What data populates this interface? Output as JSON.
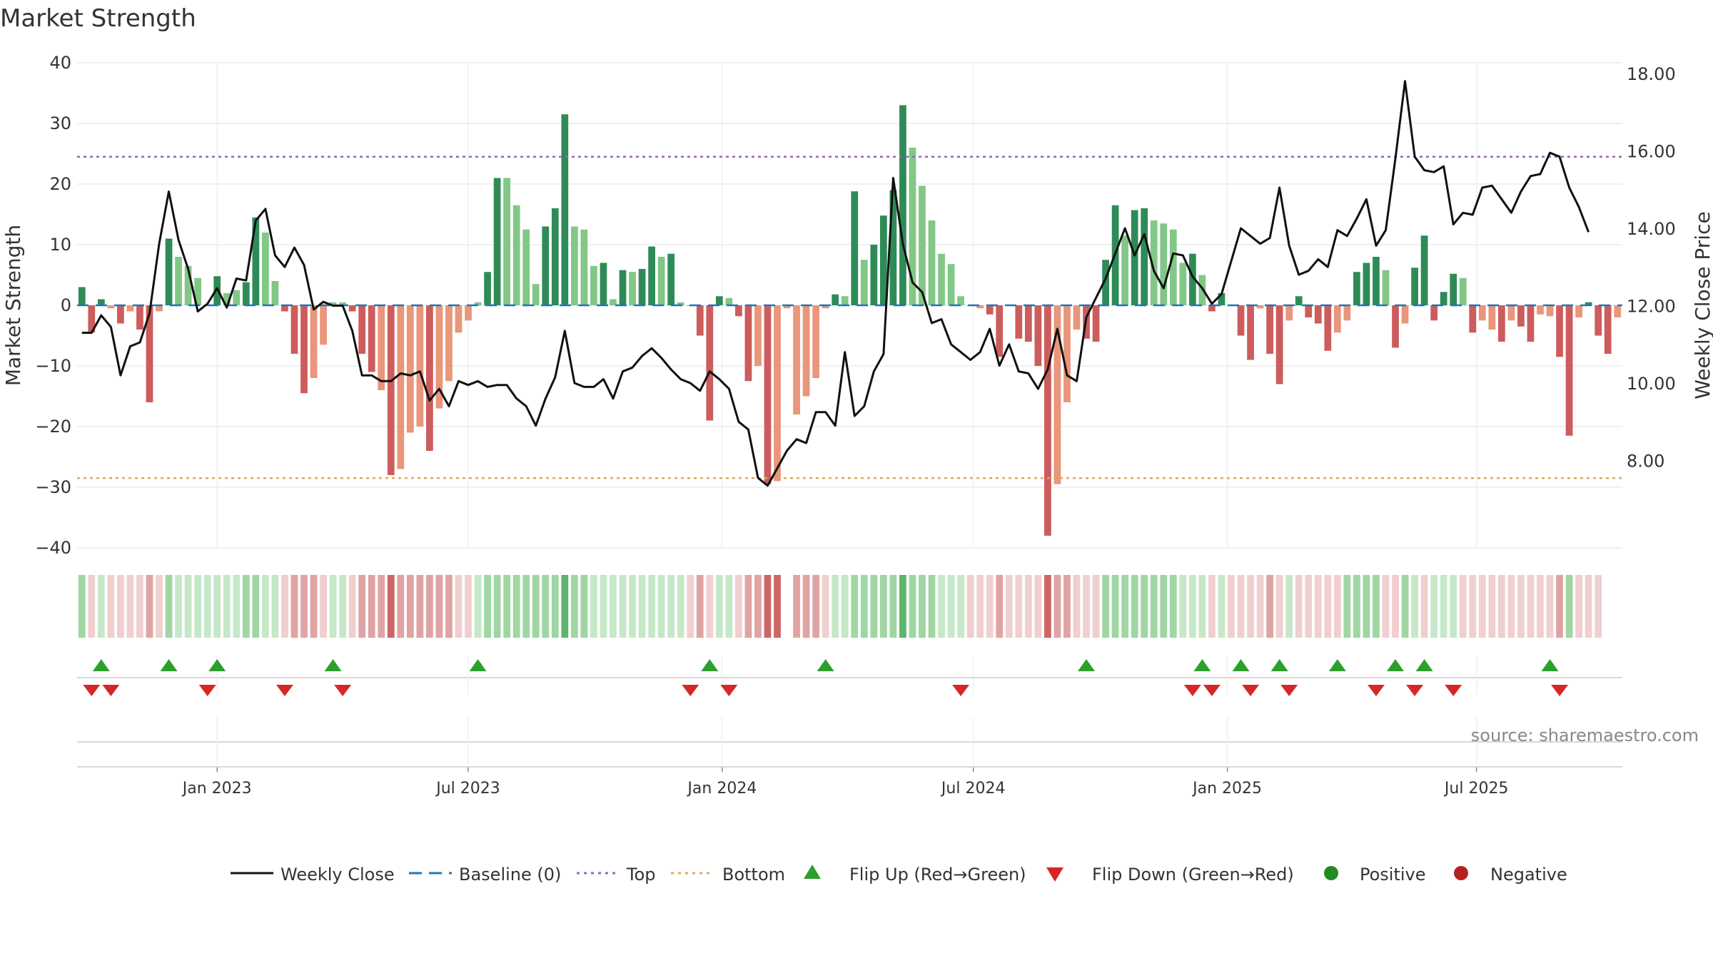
{
  "chart_data": {
    "type": "bar",
    "title": "Market Strength",
    "ylabel": "Market Strength",
    "ylabel_right": "Weekly Close Price",
    "ylim": [
      -40,
      40
    ],
    "ylim_right": [
      6.0,
      18.0
    ],
    "yticks": [
      40,
      30,
      20,
      10,
      0,
      -10,
      -20,
      -30,
      -40
    ],
    "yticks_right": [
      18.0,
      16.0,
      14.0,
      12.0,
      10.0,
      8.0
    ],
    "ytick_labels": [
      "40",
      "30",
      "20",
      "10",
      "0",
      "−10",
      "−20",
      "−30",
      "−40"
    ],
    "ytick_right_labels": [
      "18.00",
      "16.00",
      "14.00",
      "12.00",
      "10.00",
      "8.00"
    ],
    "xtick_labels": [
      "Jan 2023",
      "Jul 2023",
      "Jan 2024",
      "Jul 2024",
      "Jan 2025",
      "Jul 2025"
    ],
    "xtick_weeks": [
      14,
      40,
      66.3,
      92.3,
      118.6,
      144.4
    ],
    "top_line": 24.5,
    "bottom_line": -28.5,
    "strength": [
      3,
      -4.5,
      1,
      -0.5,
      -3,
      -1,
      -4,
      -16,
      -1,
      11,
      8,
      6.5,
      4.5,
      0,
      4.8,
      2,
      2.5,
      3.8,
      14.5,
      12,
      4,
      -1,
      -8,
      -14.5,
      -12,
      -6.5,
      0.5,
      0.5,
      -1,
      -8,
      -11,
      -14,
      -28,
      -27,
      -21,
      -20,
      -24,
      -17,
      -12.5,
      -4.5,
      -2.5,
      0.5,
      5.5,
      21,
      21,
      16.5,
      12.5,
      3.5,
      13,
      16,
      31.5,
      13,
      12.5,
      6.5,
      7,
      1,
      5.8,
      5.5,
      6,
      9.7,
      8,
      8.5,
      0.5,
      0,
      -5,
      -19,
      1.5,
      1.2,
      -1.8,
      -12.5,
      -10,
      -29.5,
      -29,
      -0.5,
      -18,
      -15,
      -12,
      -0.5,
      1.8,
      1.5,
      18.8,
      7.5,
      10,
      14.8,
      19,
      33,
      26,
      19.7,
      14,
      8.5,
      6.8,
      1.5,
      0,
      -0.5,
      -1.5,
      -8.5,
      0,
      -5.5,
      -6,
      -10,
      -38,
      -29.5,
      -16,
      -4,
      -5.5,
      -6,
      7.5,
      16.5,
      11.5,
      15.7,
      16,
      14,
      13.5,
      12.5,
      7,
      8.5,
      5,
      -1,
      2,
      0,
      -5,
      -9,
      -0.5,
      -8,
      -13,
      -2.5,
      1.5,
      -2,
      -3,
      -7.5,
      -4.5,
      -2.5,
      5.5,
      7,
      8,
      5.8,
      -7,
      -3,
      6.2,
      11.5,
      -2.5,
      2.2,
      5.2,
      4.5,
      -4.5,
      -2.5,
      -4,
      -6,
      -2.5,
      -3.5,
      -6,
      -1.5,
      -1.8,
      -8.5,
      -21.5,
      -2,
      0.5,
      -5,
      -8,
      -2
    ],
    "bar_tones": [
      "dg",
      "dr",
      "dg",
      "lr",
      "dr",
      "lr",
      "dr",
      "dr",
      "lr",
      "dg",
      "lg",
      "lg",
      "lg",
      "lg",
      "dg",
      "lg",
      "lg",
      "dg",
      "dg",
      "lg",
      "lg",
      "dr",
      "dr",
      "dr",
      "lr",
      "lr",
      "lg",
      "lg",
      "dr",
      "dr",
      "dr",
      "lr",
      "dr",
      "lr",
      "lr",
      "lr",
      "dr",
      "lr",
      "lr",
      "lr",
      "lr",
      "lg",
      "dg",
      "dg",
      "lg",
      "lg",
      "lg",
      "lg",
      "dg",
      "dg",
      "dg",
      "lg",
      "lg",
      "lg",
      "dg",
      "lg",
      "dg",
      "lg",
      "dg",
      "dg",
      "lg",
      "dg",
      "lg",
      "lr",
      "dr",
      "dr",
      "dg",
      "lg",
      "dr",
      "dr",
      "lr",
      "dr",
      "lr",
      "lr",
      "lr",
      "lr",
      "lr",
      "lr",
      "dg",
      "lg",
      "dg",
      "lg",
      "dg",
      "dg",
      "dg",
      "dg",
      "lg",
      "lg",
      "lg",
      "lg",
      "lg",
      "lg",
      "lr",
      "lr",
      "dr",
      "dr",
      "lr",
      "dr",
      "dr",
      "dr",
      "dr",
      "lr",
      "lr",
      "lr",
      "dr",
      "dr",
      "dg",
      "dg",
      "lg",
      "dg",
      "dg",
      "lg",
      "lg",
      "lg",
      "lg",
      "dg",
      "lg",
      "dr",
      "dg",
      "lr",
      "dr",
      "dr",
      "lr",
      "dr",
      "dr",
      "lr",
      "dg",
      "dr",
      "dr",
      "dr",
      "lr",
      "lr",
      "dg",
      "dg",
      "dg",
      "lg",
      "dr",
      "lr",
      "dg",
      "dg",
      "dr",
      "dg",
      "dg",
      "lg",
      "dr",
      "lr",
      "lr",
      "dr",
      "lr",
      "dr",
      "dr",
      "lr",
      "lr",
      "dr",
      "dr",
      "lr",
      "dg",
      "dr",
      "dr",
      "lr"
    ],
    "price": [
      11.3,
      11.3,
      11.75,
      11.45,
      10.2,
      10.95,
      11.05,
      11.8,
      13.6,
      14.95,
      13.7,
      12.95,
      11.85,
      12.05,
      12.45,
      11.95,
      12.7,
      12.65,
      14.2,
      14.5,
      13.3,
      13.0,
      13.5,
      13.05,
      11.9,
      12.1,
      12.0,
      12.0,
      11.35,
      10.2,
      10.2,
      10.05,
      10.05,
      10.25,
      10.2,
      10.3,
      9.55,
      9.85,
      9.4,
      10.05,
      9.95,
      10.05,
      9.9,
      9.95,
      9.95,
      9.6,
      9.4,
      8.9,
      9.6,
      10.15,
      11.35,
      10.0,
      9.9,
      9.9,
      10.1,
      9.6,
      10.3,
      10.4,
      10.7,
      10.9,
      10.65,
      10.35,
      10.1,
      10.0,
      9.8,
      10.3,
      10.1,
      9.85,
      9.0,
      8.8,
      7.55,
      7.35,
      7.8,
      8.25,
      8.55,
      8.45,
      9.25,
      9.25,
      8.9,
      10.8,
      9.15,
      9.4,
      10.3,
      10.75,
      15.3,
      13.6,
      12.6,
      12.35,
      11.55,
      11.65,
      11.0,
      10.8,
      10.6,
      10.8,
      11.4,
      10.45,
      11.0,
      10.3,
      10.25,
      9.85,
      10.35,
      11.4,
      10.2,
      10.05,
      11.7,
      12.2,
      12.7,
      13.35,
      14.0,
      13.3,
      13.85,
      12.9,
      12.45,
      13.35,
      13.3,
      12.75,
      12.45,
      12.05,
      12.3,
      13.15,
      14.0,
      13.8,
      13.6,
      13.75,
      15.05,
      13.55,
      12.8,
      12.9,
      13.2,
      13.0,
      13.95,
      13.8,
      14.25,
      14.75,
      13.55,
      13.95,
      15.8,
      17.8,
      15.85,
      15.5,
      15.45,
      15.6,
      14.1,
      14.4,
      14.35,
      15.05,
      15.1,
      14.75,
      14.4,
      14.95,
      15.35,
      15.4,
      15.95,
      15.85,
      15.05,
      14.55,
      13.9
    ],
    "shading_tones": [
      "mg",
      "lr",
      "lg",
      "lr",
      "lr",
      "lr",
      "lr",
      "mr",
      "lr",
      "mg",
      "lg",
      "lg",
      "lg",
      "lg",
      "lg",
      "lg",
      "lg",
      "mg",
      "mg",
      "lg",
      "lg",
      "lr",
      "mr",
      "mr",
      "mr",
      "lr",
      "lg",
      "lg",
      "lr",
      "mr",
      "mr",
      "mr",
      "dr",
      "mr",
      "mr",
      "mr",
      "mr",
      "mr",
      "mr",
      "lr",
      "lr",
      "lg",
      "mg",
      "mg",
      "mg",
      "mg",
      "mg",
      "mg",
      "mg",
      "mg",
      "dg",
      "mg",
      "mg",
      "lg",
      "lg",
      "lg",
      "lg",
      "lg",
      "lg",
      "lg",
      "lg",
      "lg",
      "lg",
      "lr",
      "mr",
      "lr",
      "lg",
      "lg",
      "lr",
      "mr",
      "mr",
      "dr",
      "dr",
      "w",
      "mr",
      "mr",
      "mr",
      "lr",
      "lg",
      "lg",
      "mg",
      "mg",
      "mg",
      "mg",
      "mg",
      "dg",
      "mg",
      "mg",
      "mg",
      "lg",
      "lg",
      "lg",
      "lr",
      "lr",
      "lr",
      "mr",
      "lr",
      "lr",
      "lr",
      "lr",
      "dr",
      "mr",
      "mr",
      "lr",
      "lr",
      "lr",
      "mg",
      "mg",
      "mg",
      "mg",
      "mg",
      "mg",
      "mg",
      "mg",
      "lg",
      "lg",
      "lg",
      "lr",
      "lg",
      "lr",
      "lr",
      "lr",
      "lr",
      "mr",
      "lr",
      "lg",
      "lr",
      "lr",
      "lr",
      "lr",
      "lr",
      "mg",
      "mg",
      "mg",
      "mg",
      "lr",
      "lr",
      "mg",
      "lg",
      "lr",
      "lg",
      "lg",
      "lg",
      "lr",
      "lr",
      "lr",
      "lr",
      "lr",
      "lr",
      "lr",
      "lr",
      "lr",
      "lr",
      "mr",
      "mg",
      "lr",
      "lr",
      "lr"
    ],
    "flip_up_weeks": [
      2,
      9,
      14,
      26,
      41,
      65,
      77,
      104,
      116,
      120,
      124,
      130,
      136,
      139,
      152
    ],
    "flip_down_weeks": [
      1,
      3,
      13,
      21,
      27,
      63,
      67,
      91,
      115,
      117,
      121,
      125,
      134,
      138,
      142,
      153
    ],
    "source": "source: sharemaestro.com",
    "legend": [
      "Weekly Close",
      "Baseline (0)",
      "Top",
      "Bottom",
      "Flip Up (Red→Green)",
      "Flip Down (Green→Red)",
      "Positive",
      "Negative"
    ],
    "colors": {
      "dark_green": "#2e8b57",
      "light_green": "#82c786",
      "dark_red": "#cd5c5c",
      "light_red": "#e9967a",
      "line": "#111111",
      "baseline": "#1f77b4",
      "top": "#9467bd",
      "bottom": "#e3a857",
      "flip_up": "#2ca02c",
      "flip_down": "#d62728",
      "positive": "#228b22",
      "negative": "#b22222"
    }
  }
}
